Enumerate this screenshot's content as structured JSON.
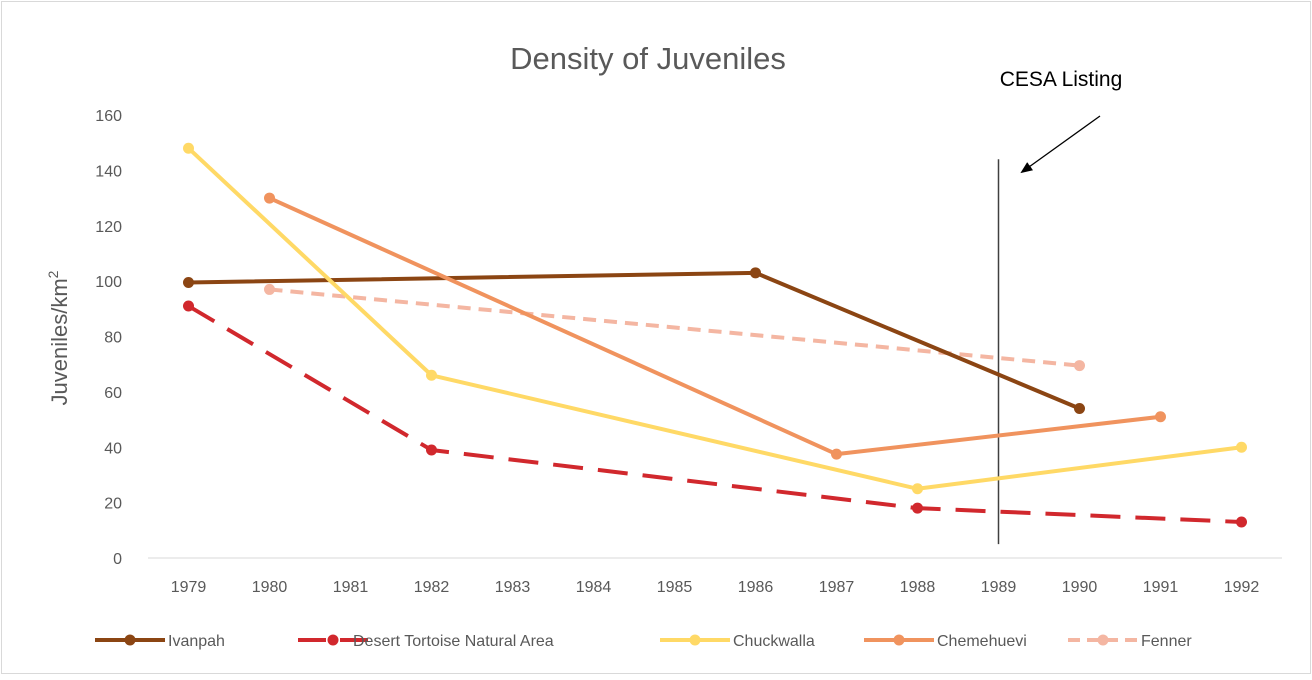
{
  "chart_data": {
    "type": "line",
    "title": "Density of Juveniles",
    "ylabel": "Juveniles/km",
    "ylabel_superscript": "2",
    "xlabel": "",
    "x": [
      "1979",
      "1980",
      "1981",
      "1982",
      "1983",
      "1984",
      "1985",
      "1986",
      "1987",
      "1988",
      "1989",
      "1990",
      "1991",
      "1992"
    ],
    "ylim": [
      0,
      160
    ],
    "yticks": [
      "0",
      "20",
      "40",
      "60",
      "80",
      "100",
      "120",
      "140",
      "160"
    ],
    "grid": false,
    "legend_position": "bottom",
    "series": [
      {
        "name": "Ivanpah",
        "color": "#8B4513",
        "dash": "solid",
        "points": [
          {
            "x": "1979",
            "y": 99.5
          },
          {
            "x": "1986",
            "y": 103
          },
          {
            "x": "1990",
            "y": 54
          }
        ]
      },
      {
        "name": "Desert Tortoise Natural Area",
        "color": "#D1282D",
        "dash": "long-dash",
        "points": [
          {
            "x": "1979",
            "y": 91
          },
          {
            "x": "1982",
            "y": 39
          },
          {
            "x": "1988",
            "y": 18
          },
          {
            "x": "1992",
            "y": 13
          }
        ]
      },
      {
        "name": "Chuckwalla",
        "color": "#FFD966",
        "dash": "solid",
        "points": [
          {
            "x": "1979",
            "y": 148
          },
          {
            "x": "1982",
            "y": 66
          },
          {
            "x": "1988",
            "y": 25
          },
          {
            "x": "1992",
            "y": 40
          }
        ]
      },
      {
        "name": "Chemehuevi",
        "color": "#F0935E",
        "dash": "solid",
        "points": [
          {
            "x": "1980",
            "y": 130
          },
          {
            "x": "1987",
            "y": 37.5
          },
          {
            "x": "1991",
            "y": 51
          }
        ]
      },
      {
        "name": "Fenner",
        "color": "#F4B6A2",
        "dash": "dash",
        "points": [
          {
            "x": "1980",
            "y": 97
          },
          {
            "x": "1990",
            "y": 69.5
          }
        ]
      }
    ],
    "annotations": [
      {
        "type": "vertical-line",
        "x": "1989",
        "y_range": [
          5,
          144
        ],
        "color": "#404040"
      },
      {
        "type": "arrow-label",
        "text": "CESA Listing",
        "color": "#000000"
      }
    ]
  }
}
